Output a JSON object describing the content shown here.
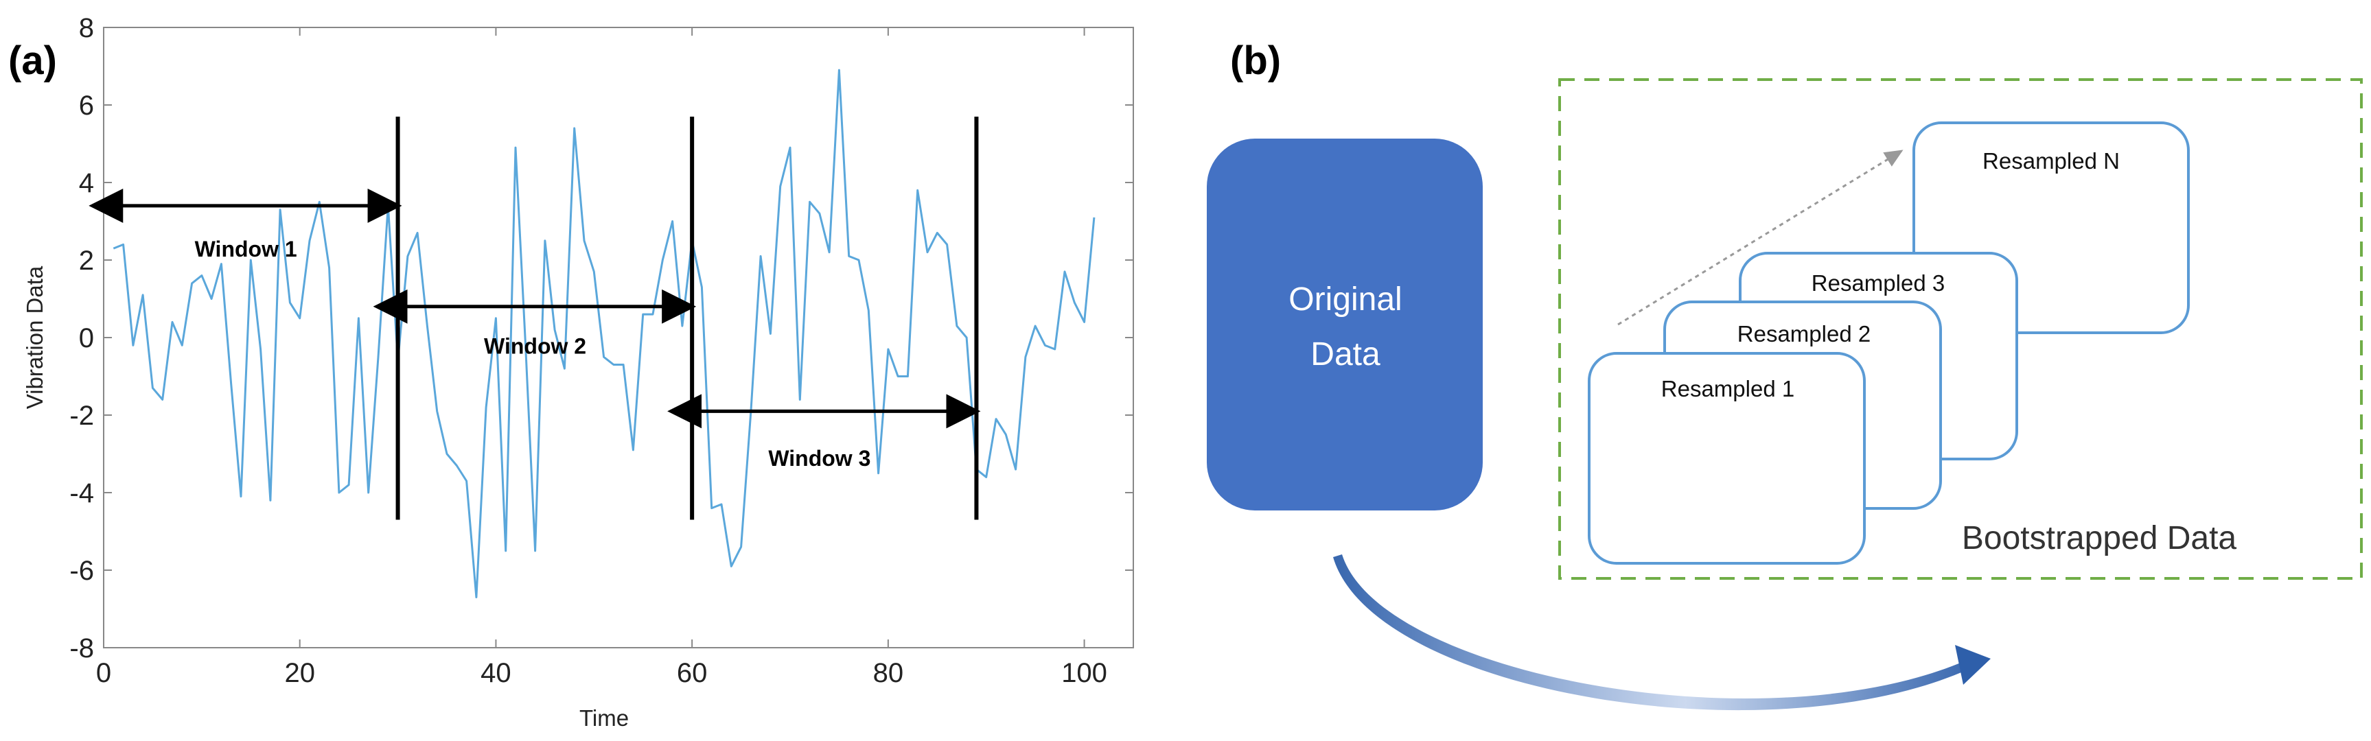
{
  "panel_a": {
    "label": "(a)",
    "chart_data": {
      "type": "line",
      "title": "",
      "xlabel": "Time",
      "ylabel": "Vibration Data",
      "xlim": [
        0,
        105
      ],
      "ylim": [
        -8,
        8
      ],
      "xticks": [
        "0",
        "20",
        "40",
        "60",
        "80",
        "100"
      ],
      "yticks": [
        "8",
        "6",
        "4",
        "2",
        "0",
        "-2",
        "-4",
        "-6",
        "-8"
      ],
      "series_color": "#5aa7db",
      "series": [
        {
          "x": [
            1,
            2,
            3,
            4,
            5,
            6,
            7,
            8,
            9,
            10,
            11,
            12,
            13,
            14,
            15,
            16,
            17,
            18,
            19,
            20,
            21,
            22,
            23,
            24,
            25,
            26,
            27,
            28,
            29,
            30,
            31,
            32,
            33,
            34,
            35,
            36,
            37,
            38,
            39,
            40,
            41,
            42,
            43,
            44,
            45,
            46,
            47,
            48,
            49,
            50,
            51,
            52,
            53,
            54,
            55,
            56,
            57,
            58,
            59,
            60,
            61,
            62,
            63,
            64,
            65,
            66,
            67,
            68,
            69,
            70,
            71,
            72,
            73,
            74,
            75,
            76,
            77,
            78,
            79,
            80,
            81,
            82,
            83,
            84,
            85,
            86,
            87,
            88,
            89,
            90,
            91,
            92,
            93,
            94,
            95,
            96,
            97,
            98,
            99,
            100,
            101
          ],
          "values": [
            2.3,
            2.4,
            -0.2,
            1.1,
            -1.3,
            -1.6,
            0.4,
            -0.2,
            1.4,
            1.6,
            1.0,
            1.9,
            -1.2,
            -4.1,
            2.0,
            -0.3,
            -4.2,
            3.3,
            0.9,
            0.5,
            2.5,
            3.5,
            1.8,
            -4.0,
            -3.8,
            0.5,
            -4.0,
            -0.5,
            3.4,
            -0.6,
            2.1,
            2.7,
            0.3,
            -1.9,
            -3.0,
            -3.3,
            -3.7,
            -6.7,
            -1.8,
            0.5,
            -5.5,
            4.9,
            -0.1,
            -5.5,
            2.5,
            0.2,
            -0.8,
            5.4,
            2.5,
            1.7,
            -0.5,
            -0.7,
            -0.7,
            -2.9,
            0.6,
            0.6,
            2.0,
            3.0,
            0.3,
            2.5,
            1.3,
            -4.4,
            -4.3,
            -5.9,
            -5.4,
            -1.9,
            2.1,
            0.1,
            3.9,
            4.9,
            -1.6,
            3.5,
            3.2,
            2.2,
            6.9,
            2.1,
            2.0,
            0.7,
            -3.5,
            -0.3,
            -1.0,
            -1.0,
            3.8,
            2.2,
            2.7,
            2.4,
            0.3,
            0.0,
            -3.4,
            -3.6,
            -2.1,
            -2.5,
            -3.4,
            -0.5,
            0.3,
            -0.2,
            -0.3,
            1.7,
            0.9,
            0.4,
            3.1
          ]
        }
      ],
      "windows": [
        {
          "label": "Window 1",
          "boundary": 30,
          "arrow_from": 1,
          "arrow_to": 30,
          "arrow_y": 3.4,
          "label_x": 14.5,
          "label_y": 2.3
        },
        {
          "label": "Window 2",
          "boundary": 60,
          "arrow_from": 30,
          "arrow_to": 60,
          "arrow_y": 0.8,
          "label_x": 44,
          "label_y": -0.2
        },
        {
          "label": "Window 3",
          "boundary": 89,
          "arrow_from": 60,
          "arrow_to": 89,
          "arrow_y": -1.9,
          "label_x": 73,
          "label_y": -3.1
        }
      ],
      "window_line_range": [
        -4.7,
        5.7
      ]
    }
  },
  "panel_b": {
    "label": "(b)",
    "original_box": {
      "line1": "Original",
      "line2": "Data",
      "color": "#4472c4"
    },
    "resampled": [
      "Resampled 1",
      "Resampled 2",
      "Resampled 3",
      "Resampled N"
    ],
    "bootstrapped_label": "Bootstrapped Data",
    "box_border_color": "#5b9bd5",
    "dashed_border_color": "#70ad47",
    "arrow_color": "#2e5faa"
  }
}
